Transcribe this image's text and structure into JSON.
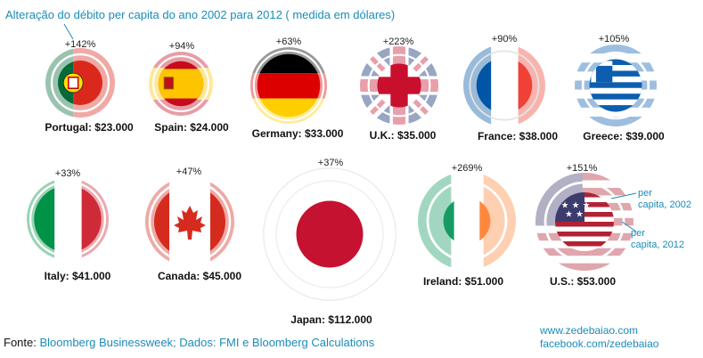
{
  "title": "Alteração do débito per capita do ano 2002 para 2012  ( medida em dólares)",
  "countries": [
    {
      "name": "Portugal",
      "change": "+142%",
      "label": "Portugal: $23.000"
    },
    {
      "name": "Spain",
      "change": "+94%",
      "label": "Spain: $24.000"
    },
    {
      "name": "Germany",
      "change": "+63%",
      "label": "Germany: $33.000"
    },
    {
      "name": "U.K.",
      "change": "+223%",
      "label": "U.K.: $35.000"
    },
    {
      "name": "France",
      "change": "+90%",
      "label": "France: $38.000"
    },
    {
      "name": "Greece",
      "change": "+105%",
      "label": "Greece: $39.000"
    },
    {
      "name": "Italy",
      "change": "+33%",
      "label": "Italy: $41.000"
    },
    {
      "name": "Canada",
      "change": "+47%",
      "label": "Canada: $45.000"
    },
    {
      "name": "Japan",
      "change": "+37%",
      "label": "Japan: $112.000"
    },
    {
      "name": "Ireland",
      "change": "+269%",
      "label": "Ireland: $51.000"
    },
    {
      "name": "U.S.",
      "change": "+151%",
      "label": "U.S.: $53.000"
    }
  ],
  "legend": {
    "per_capita_2002": "per\ncapita, 2002",
    "per_capita_2012": "per\ncapita, 2012"
  },
  "source": {
    "key": "Fonte: ",
    "value": "Bloomberg Businessweek; Dados: FMI e Bloomberg Calculations"
  },
  "website": "www.zedebaiao.com",
  "facebook": "facebook.com/zedebaiao",
  "colors": {
    "accent": "#1b8cb8"
  }
}
